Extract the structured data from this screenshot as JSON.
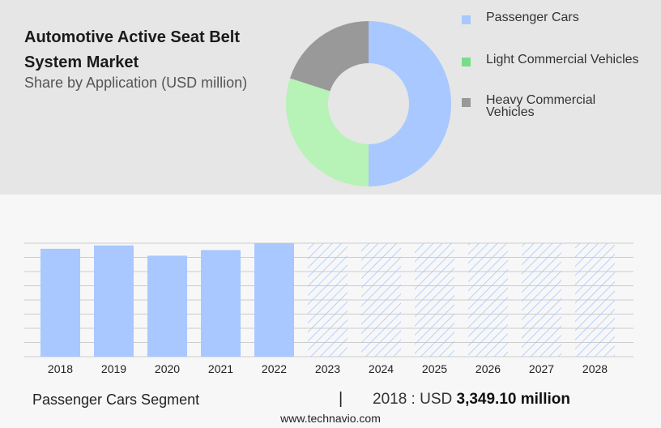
{
  "header": {
    "title": "Automotive Active Seat Belt System Market",
    "subtitle": "Share by Application (USD million)"
  },
  "colors": {
    "passenger": "#a8c8ff",
    "light_commercial": "#b7f2b7",
    "heavy_commercial": "#999999",
    "legend_light_commercial": "#77dd88",
    "forecast_hatch": "#a8c8ff",
    "grid": "#cccccc"
  },
  "chart_data": [
    {
      "type": "pie",
      "variant": "donut",
      "title": "",
      "slices": [
        {
          "label": "Passenger Cars",
          "value": 50
        },
        {
          "label": "Light Commercial Vehicles",
          "value": 30
        },
        {
          "label": "Heavy Commercial Vehicles",
          "value": 20
        }
      ],
      "legend_placement": "right"
    },
    {
      "type": "bar",
      "title": "",
      "xlabel": "",
      "ylabel": "",
      "categories": [
        "2018",
        "2019",
        "2020",
        "2021",
        "2022",
        "2023",
        "2024",
        "2025",
        "2026",
        "2027",
        "2028"
      ],
      "values": [
        3349.1,
        3453,
        3135,
        3309,
        3523,
        3523,
        3523,
        3523,
        3523,
        3523,
        3523
      ],
      "forecast": [
        false,
        false,
        false,
        false,
        false,
        true,
        true,
        true,
        true,
        true,
        true
      ],
      "ylim": [
        0,
        3523
      ],
      "grid": true,
      "y_tick_labels_visible": false
    }
  ],
  "footer": {
    "segment": "Passenger Cars Segment",
    "divider": "|",
    "year_label": "2018 : USD ",
    "value_label": "3,349.10 million",
    "source": "www.technavio.com"
  }
}
